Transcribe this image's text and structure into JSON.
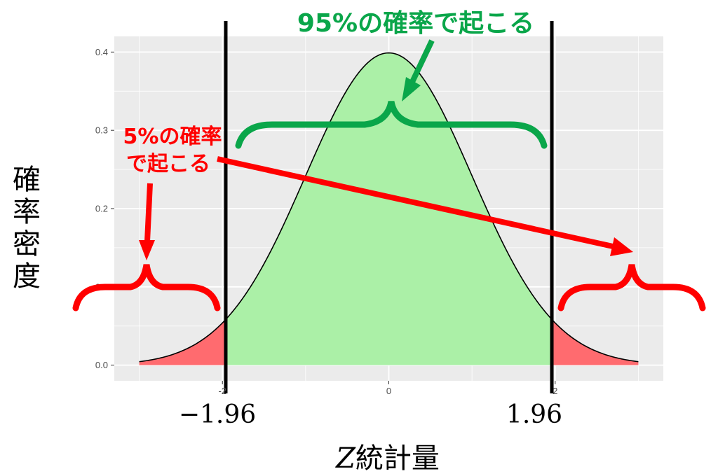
{
  "chart_data": {
    "type": "area",
    "distribution": "standard-normal",
    "x_range": [
      -3,
      3
    ],
    "xlim": [
      -3.3,
      3.3
    ],
    "ylim": [
      -0.02,
      0.42
    ],
    "x_ticks": [
      -2,
      0,
      2
    ],
    "x_tick_labels": [
      "-2",
      "0",
      "2"
    ],
    "y_ticks": [
      0.0,
      0.1,
      0.2,
      0.3,
      0.4
    ],
    "y_tick_labels": [
      "0.0",
      "0.1",
      "0.2",
      "0.3",
      "0.4"
    ],
    "critical_values": [
      -1.96,
      1.96
    ],
    "critical_labels": [
      "−1.96",
      "1.96"
    ],
    "xlabel_italic": "Z",
    "xlabel_rest": "統計量",
    "ylabel": "確率密度",
    "grid": true,
    "regions": [
      {
        "name": "central",
        "from": -1.96,
        "to": 1.96,
        "probability": 0.95,
        "color": "#abf0a7"
      },
      {
        "name": "tails",
        "probability": 0.05,
        "color": "#ff6b6f"
      }
    ],
    "annotations": {
      "central": "95%の確率で起こる",
      "tails_line1": "5%の確率",
      "tails_line2": "で起こる"
    }
  },
  "colors": {
    "panel": "#ebebeb",
    "grid": "#ffffff",
    "central_fill": "#abf0a7",
    "tail_fill": "#ff6b6f",
    "green_annotation": "#0aa64a",
    "red_annotation": "#ff0000"
  }
}
